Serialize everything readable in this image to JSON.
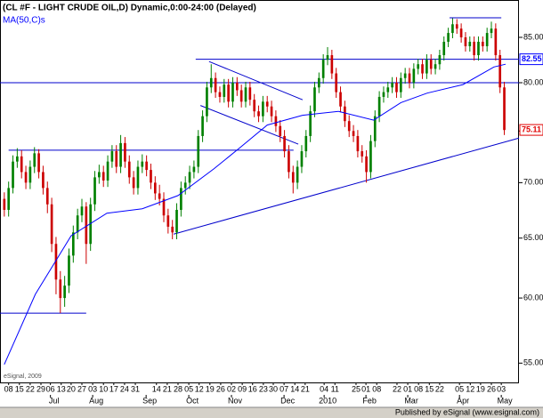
{
  "chart_data": {
    "type": "candlestick",
    "title": "(CL #F - LIGHT CRUDE OIL,D) Dynamic,0:00-24:00 (Delayed)",
    "ma_label": "MA(50,C)s",
    "watermark": "eSignal, 2009",
    "footer": "Published by eSignal (www.esignal.com)",
    "log_scale": true,
    "ylim": [
      53.6,
      89.35
    ],
    "xlim": [
      -1,
      119.4
    ],
    "yticks": [
      {
        "value": 55,
        "label": "55.00"
      },
      {
        "value": 60,
        "label": "60.00"
      },
      {
        "value": 65,
        "label": "65.00"
      },
      {
        "value": 70,
        "label": "70.00"
      },
      {
        "value": 75,
        "label": "75.00"
      },
      {
        "value": 80,
        "label": "80.00"
      },
      {
        "value": 85,
        "label": "85.00"
      }
    ],
    "xticks": [
      {
        "value": 1.0,
        "label": "08"
      },
      {
        "value": 3.5,
        "label": "15"
      },
      {
        "value": 6.0,
        "label": "22"
      },
      {
        "value": 8.5,
        "label": "29"
      },
      {
        "value": 10.7,
        "label": "06"
      },
      {
        "value": 13.2,
        "label": "13"
      },
      {
        "value": 15.5,
        "label": "20"
      },
      {
        "value": 18.0,
        "label": "27"
      },
      {
        "value": 20.5,
        "label": "03"
      },
      {
        "value": 23.0,
        "label": "10"
      },
      {
        "value": 25.4,
        "label": "17"
      },
      {
        "value": 27.9,
        "label": "24"
      },
      {
        "value": 30.4,
        "label": "31"
      },
      {
        "value": 35.3,
        "label": "14"
      },
      {
        "value": 37.8,
        "label": "21"
      },
      {
        "value": 40.3,
        "label": "28"
      },
      {
        "value": 42.8,
        "label": "05"
      },
      {
        "value": 45.2,
        "label": "12"
      },
      {
        "value": 47.7,
        "label": "19"
      },
      {
        "value": 50.2,
        "label": "26"
      },
      {
        "value": 52.7,
        "label": "02"
      },
      {
        "value": 55.2,
        "label": "09"
      },
      {
        "value": 57.6,
        "label": "16"
      },
      {
        "value": 60.1,
        "label": "23"
      },
      {
        "value": 62.4,
        "label": "30"
      },
      {
        "value": 64.9,
        "label": "07"
      },
      {
        "value": 67.4,
        "label": "14"
      },
      {
        "value": 69.8,
        "label": "21"
      },
      {
        "value": 74.2,
        "label": "04"
      },
      {
        "value": 76.7,
        "label": "11"
      },
      {
        "value": 81.6,
        "label": "25"
      },
      {
        "value": 83.9,
        "label": "01"
      },
      {
        "value": 86.4,
        "label": "08"
      },
      {
        "value": 91.1,
        "label": "22"
      },
      {
        "value": 93.6,
        "label": "01"
      },
      {
        "value": 96.1,
        "label": "08"
      },
      {
        "value": 98.6,
        "label": "15"
      },
      {
        "value": 101.0,
        "label": "22"
      },
      {
        "value": 105.6,
        "label": "05"
      },
      {
        "value": 108.1,
        "label": "12"
      },
      {
        "value": 110.5,
        "label": "19"
      },
      {
        "value": 113.0,
        "label": "26"
      },
      {
        "value": 115.3,
        "label": "03"
      }
    ],
    "month_ticks": [
      {
        "value": 10.7,
        "label": "Jul"
      },
      {
        "value": 20.5,
        "label": "Aug"
      },
      {
        "value": 32.9,
        "label": "Sep"
      },
      {
        "value": 42.8,
        "label": "Oct"
      },
      {
        "value": 52.7,
        "label": "Nov"
      },
      {
        "value": 64.9,
        "label": "Dec"
      },
      {
        "value": 74.2,
        "label": "2010"
      },
      {
        "value": 83.9,
        "label": "Feb"
      },
      {
        "value": 93.6,
        "label": "Mar"
      },
      {
        "value": 105.6,
        "label": "Apr"
      },
      {
        "value": 115.3,
        "label": "May"
      }
    ],
    "up_color": "#008000",
    "down_color": "#cc0000",
    "open": [
      68.5,
      67.5,
      69.5,
      72.0,
      72.5,
      71.0,
      70.0,
      71.5,
      72.8,
      71.0,
      69.5,
      68.0,
      64.5,
      61.5,
      60.0,
      61.0,
      63.5,
      65.5,
      67.0,
      67.8,
      64.5,
      68.0,
      70.5,
      71.0,
      70.2,
      72.0,
      73.0,
      71.5,
      73.8,
      72.0,
      70.5,
      69.5,
      71.5,
      72.0,
      71.2,
      70.0,
      69.0,
      68.5,
      67.0,
      66.0,
      65.5,
      67.5,
      69.5,
      70.0,
      71.0,
      71.5,
      74.5,
      76.5,
      79.5,
      80.5,
      79.0,
      78.5,
      79.8,
      78.0,
      80.0,
      79.2,
      78.0,
      79.5,
      78.2,
      77.0,
      76.5,
      78.0,
      77.5,
      76.5,
      75.5,
      74.5,
      73.0,
      71.0,
      70.0,
      71.5,
      73.0,
      74.5,
      77.0,
      79.5,
      80.5,
      82.5,
      83.0,
      81.0,
      79.0,
      77.5,
      76.0,
      75.0,
      74.5,
      73.0,
      72.5,
      71.0,
      74.0,
      76.5,
      78.5,
      79.0,
      79.5,
      80.0,
      79.0,
      80.5,
      81.0,
      80.0,
      81.5,
      82.0,
      81.0,
      82.5,
      81.5,
      82.0,
      83.0,
      84.5,
      85.5,
      86.5,
      86.0,
      85.0,
      84.0,
      84.5,
      83.0,
      84.5,
      84.0,
      85.5,
      86.0,
      83.0,
      79.5
    ],
    "high": [
      69.1,
      70.1,
      72.6,
      73.3,
      73.1,
      71.6,
      72.1,
      73.4,
      73.2,
      71.6,
      70.1,
      68.6,
      65.1,
      62.2,
      61.8,
      64.1,
      66.1,
      67.6,
      68.5,
      68.2,
      68.6,
      71.1,
      71.7,
      71.6,
      72.6,
      73.6,
      73.6,
      74.6,
      74.4,
      72.6,
      71.1,
      72.1,
      72.7,
      72.6,
      71.8,
      70.6,
      69.8,
      69.1,
      67.6,
      66.6,
      68.1,
      70.1,
      70.6,
      71.6,
      72.1,
      75.1,
      77.1,
      80.1,
      82.0,
      81.1,
      79.6,
      80.4,
      80.4,
      80.6,
      80.6,
      79.8,
      80.1,
      80.1,
      78.8,
      77.6,
      78.6,
      78.6,
      78.1,
      77.1,
      76.1,
      75.1,
      73.6,
      71.6,
      72.1,
      73.6,
      75.1,
      77.6,
      80.1,
      81.1,
      83.1,
      83.9,
      83.6,
      81.6,
      79.6,
      78.1,
      76.6,
      75.6,
      75.1,
      73.6,
      73.1,
      74.6,
      77.1,
      79.1,
      79.6,
      80.1,
      80.6,
      80.6,
      81.1,
      81.6,
      81.6,
      82.1,
      82.6,
      82.6,
      83.1,
      83.1,
      82.6,
      83.6,
      85.1,
      86.1,
      87.2,
      87.1,
      86.6,
      85.6,
      85.1,
      85.1,
      85.1,
      85.1,
      86.1,
      86.8,
      86.6,
      83.6,
      80.1
    ],
    "low": [
      66.9,
      66.9,
      69.0,
      71.4,
      70.4,
      69.4,
      69.4,
      70.9,
      70.4,
      68.9,
      67.2,
      63.8,
      60.3,
      58.8,
      59.3,
      60.4,
      62.9,
      64.9,
      66.4,
      62.8,
      63.9,
      67.4,
      69.9,
      69.6,
      69.6,
      71.4,
      70.9,
      70.9,
      71.4,
      69.9,
      68.9,
      68.9,
      70.9,
      70.6,
      69.4,
      68.4,
      67.9,
      66.4,
      65.4,
      64.9,
      64.9,
      66.9,
      68.9,
      69.4,
      70.4,
      70.9,
      73.9,
      75.9,
      78.9,
      78.4,
      77.9,
      77.9,
      77.4,
      77.4,
      78.6,
      77.4,
      77.4,
      77.6,
      76.4,
      75.9,
      75.9,
      76.9,
      75.9,
      74.9,
      73.9,
      72.4,
      70.4,
      69.0,
      69.4,
      70.9,
      72.4,
      73.9,
      76.4,
      78.9,
      79.9,
      81.9,
      80.4,
      78.4,
      76.9,
      75.4,
      74.4,
      73.9,
      72.4,
      71.9,
      70.0,
      70.4,
      73.4,
      75.9,
      77.9,
      78.4,
      78.9,
      78.4,
      78.4,
      79.9,
      79.4,
      79.4,
      80.9,
      80.4,
      80.4,
      80.9,
      80.9,
      81.4,
      82.4,
      83.9,
      84.9,
      85.4,
      84.4,
      83.4,
      83.4,
      82.4,
      82.4,
      83.4,
      83.4,
      84.9,
      82.4,
      78.9,
      74.6
    ],
    "close": [
      67.5,
      69.5,
      72.0,
      72.5,
      71.0,
      70.0,
      71.5,
      72.8,
      71.0,
      69.5,
      68.0,
      64.5,
      61.5,
      60.0,
      61.0,
      63.5,
      65.5,
      67.0,
      67.8,
      64.5,
      68.0,
      70.5,
      71.0,
      70.2,
      72.0,
      73.0,
      71.5,
      73.8,
      72.0,
      70.5,
      69.5,
      71.5,
      72.0,
      71.2,
      70.0,
      69.0,
      68.5,
      67.0,
      66.0,
      65.5,
      67.5,
      69.5,
      70.0,
      71.0,
      71.5,
      74.5,
      76.5,
      79.5,
      80.5,
      79.0,
      78.5,
      79.8,
      78.0,
      80.0,
      79.2,
      78.0,
      79.5,
      78.2,
      77.0,
      76.5,
      78.0,
      77.5,
      76.5,
      75.5,
      74.5,
      73.0,
      71.0,
      70.0,
      71.5,
      73.0,
      74.5,
      77.0,
      79.5,
      80.5,
      82.5,
      83.0,
      81.0,
      79.0,
      77.5,
      76.0,
      75.0,
      74.5,
      73.0,
      72.5,
      71.0,
      74.0,
      76.5,
      78.5,
      79.0,
      79.5,
      80.0,
      79.0,
      80.5,
      81.0,
      80.0,
      81.5,
      82.0,
      81.0,
      82.5,
      81.5,
      82.0,
      83.0,
      84.5,
      85.5,
      86.5,
      86.0,
      85.0,
      84.0,
      84.5,
      83.0,
      84.5,
      84.0,
      85.5,
      86.0,
      83.0,
      79.5,
      75.1
    ],
    "ma": {
      "color": "#0000ff",
      "x": [
        0,
        7.2,
        15.5,
        23.8,
        32,
        40.3,
        48.6,
        54.8,
        61,
        69.2,
        77.5,
        85.7,
        92,
        98.1,
        106.4,
        113.6,
        116.3
      ],
      "values": [
        54.9,
        60.3,
        65.2,
        67.2,
        67.6,
        68.8,
        71.3,
        73.4,
        75.6,
        76.6,
        77.0,
        76.1,
        77.9,
        78.9,
        79.8,
        81.7,
        82.0
      ]
    },
    "line_color": "#0000cc",
    "lines": [
      {
        "x": [
          1,
          67.1
        ],
        "y": [
          73.1,
          73.1
        ]
      },
      {
        "x": [
          -1,
          19
        ],
        "y": [
          58.8,
          58.8
        ]
      },
      {
        "x": [
          -1,
          119.4
        ],
        "y": [
          80.0,
          80.0
        ]
      },
      {
        "x": [
          44.4,
          119.4
        ],
        "y": [
          82.55,
          82.55
        ]
      },
      {
        "x": [
          103.3,
          115.3
        ],
        "y": [
          87.25,
          87.25
        ]
      },
      {
        "x": [
          39.3,
          119.4
        ],
        "y": [
          65.35,
          74.3
        ]
      },
      {
        "x": [
          47.5,
          69.2
        ],
        "y": [
          82.3,
          78.2
        ]
      },
      {
        "x": [
          45.5,
          68.2
        ],
        "y": [
          77.6,
          73.7
        ]
      }
    ],
    "price_labels": [
      {
        "value": 82.55,
        "color": "#0000ff"
      },
      {
        "value": 75.11,
        "color": "#e00000"
      }
    ]
  }
}
